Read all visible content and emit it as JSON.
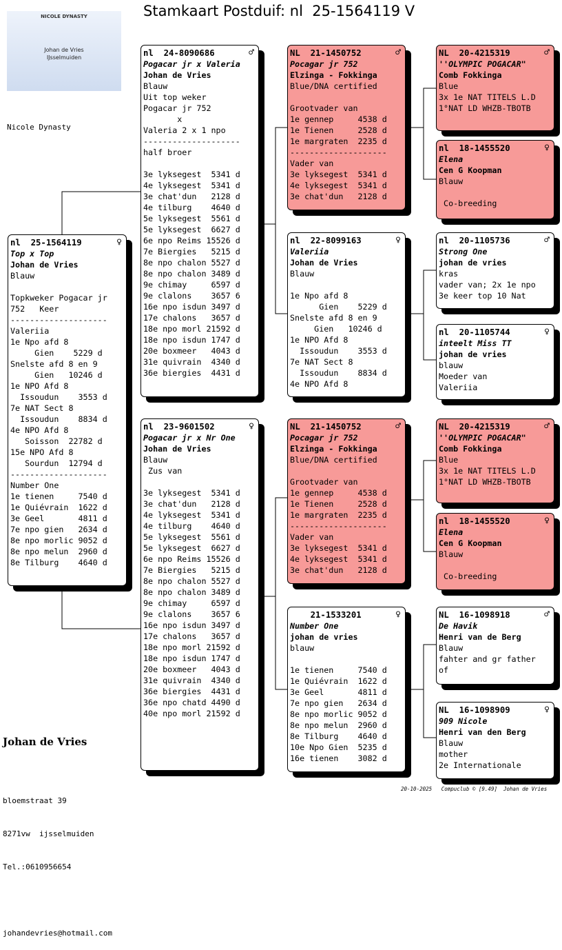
{
  "header": {
    "title": "Stamkaart Postduif: nl  25-1564119 V",
    "loft": "Nicole Dynasty",
    "logo": {
      "title": "NICOLE DYNASTY",
      "name": "Johan de Vries",
      "place": "IJsselmuiden"
    }
  },
  "owner": {
    "name": "Johan de Vries",
    "street": "bloemstraat 39",
    "city": "8271vw  ijsselmuiden",
    "phone": "Tel.:0610956654",
    "email": "johandevries@hotmail.com"
  },
  "footer": "20-10-2025   Compuclub © [9.49]  Johan de Vries",
  "cards": [
    {
      "ring": "nl  25-1564119",
      "sex": "♀",
      "name": "Top x Top",
      "owner": "Johan de Vries",
      "blocks": [
        [
          "Blauw"
        ],
        [
          "Topkweker Pogacar jr",
          "752   Keer",
          "--------------------",
          "Valeriia",
          "1e Npo afd 8",
          "     Gien    5229 d",
          "Snelste afd 8 en 9",
          "     Gien   10246 d",
          "1e NPO Afd 8",
          "  Issoudun    3553 d",
          "7e NAT Sect 8",
          "  Issoudun    8834 d",
          "4e NPO Afd 8",
          "   Soisson  22782 d",
          "15e NPO Afd 8",
          "   Sourdun  12794 d",
          "--------------------",
          "Number One",
          "1e tienen     7540 d",
          "1e Quiévrain  1622 d",
          "3e Geel       4811 d",
          "7e npo gien   2634 d",
          "8e npo morlic 9052 d",
          "8e npo melun  2960 d",
          "8e Tilburg    4640 d"
        ]
      ]
    },
    {
      "ring": "nl  24-8090686",
      "sex": "♂",
      "name": "Pogacar jr x Valeria",
      "owner": "Johan de Vries",
      "blocks": [
        [
          "Blauw",
          "Uit top weker",
          "Pogacar jr 752",
          "       x",
          "Valeria 2 x 1 npo",
          "--------------------",
          "half broer"
        ],
        [
          "3e lyksegest  5341 d",
          "4e lyksegest  5341 d",
          "3e chat'dun   2128 d",
          "4e tilburg    4640 d",
          "5e lyksegest  5561 d",
          "5e lyksegest  6627 d",
          "6e npo Reims 15526 d",
          "7e Biergies   5215 d",
          "8e npo chalon 5527 d",
          "8e npo chalon 3489 d",
          "9e chimay     6597 d",
          "9e clalons    3657 6",
          "16e npo isdun 3497 d",
          "17e chalons   3657 d",
          "18e npo morl 21592 d",
          "18e npo isdun 1747 d",
          "20e boxmeer   4043 d",
          "31e quivrain  4340 d",
          "36e biergies  4431 d"
        ]
      ]
    },
    {
      "ring": "nl  23-9601502",
      "sex": "♀",
      "name": "Pogacar jr x Nr One",
      "owner": "Johan de Vries",
      "blocks": [
        [
          "Blauw",
          " Zus van"
        ],
        [
          "3e lyksegest  5341 d",
          "3e chat'dun   2128 d",
          "4e lyksegest  5341 d",
          "4e tilburg    4640 d",
          "5e lyksegest  5561 d",
          "5e lyksegest  6627 d",
          "6e npo Reims 15526 d",
          "7e Biergies   5215 d",
          "8e npo chalon 5527 d",
          "8e npo chalon 3489 d",
          "9e chimay     6597 d",
          "9e clalons    3657 6",
          "16e npo isdun 3497 d",
          "17e chalons   3657 d",
          "18e npo morl 21592 d",
          "18e npo isdun 1747 d",
          "20e boxmeer   4043 d",
          "31e quivrain  4340 d",
          "36e biergies  4431 d",
          "36e npo chatd 4490 d",
          "40e npo morl 21592 d"
        ]
      ]
    },
    {
      "ring": "NL  21-1450752",
      "sex": "♂",
      "name": "Pocagar jr 752",
      "owner": "Elzinga - Fokkinga",
      "blocks": [
        [
          "Blue/DNA certified"
        ],
        [
          "Grootvader van",
          "1e gennep     4538 d",
          "1e Tienen     2528 d",
          "1e margraten  2235 d",
          "--------------------",
          "Vader van",
          "3e lyksegest  5341 d",
          "4e lyksegest  5341 d",
          "3e chat'dun   2128 d"
        ]
      ]
    },
    {
      "ring": "nl  22-8099163",
      "sex": "♀",
      "name": "Valeriia",
      "owner": "Johan de Vries",
      "blocks": [
        [
          "Blauw"
        ],
        [
          "1e Npo afd 8",
          "      Gien    5229 d",
          "Snelste afd 8 en 9",
          "     Gien   10246 d",
          "1e NPO Afd 8",
          "  Issoudun    3553 d",
          "7e NAT Sect 8",
          "  Issoudun    8834 d",
          "4e NPO Afd 8"
        ]
      ]
    },
    {
      "ring": "NL  21-1450752",
      "sex": "♂",
      "name": "Pocagar jr 752",
      "owner": "Elzinga - Fokkinga",
      "blocks": [
        [
          "Blue/DNA certified"
        ],
        [
          "Grootvader van",
          "1e gennep     4538 d",
          "1e Tienen     2528 d",
          "1e margraten  2235 d",
          "--------------------",
          "Vader van",
          "3e lyksegest  5341 d",
          "4e lyksegest  5341 d",
          "3e chat'dun   2128 d"
        ]
      ]
    },
    {
      "ring": "    21-1533201",
      "sex": "♀",
      "name": "Number One",
      "owner": "johan de vries",
      "blocks": [
        [
          "blauw"
        ],
        [
          "1e tienen     7540 d",
          "1e Quiévrain  1622 d",
          "3e Geel       4811 d",
          "7e npo gien   2634 d",
          "8e npo morlic 9052 d",
          "8e npo melun  2960 d",
          "8e Tilburg    4640 d",
          "10e Npo Gien  5235 d",
          "16e tienen    3082 d"
        ]
      ]
    },
    {
      "ring": "NL  20-4215319",
      "sex": "♂",
      "name": "''OLYMPIC POGACAR\"",
      "owner": "Comb Fokkinga",
      "blocks": [
        [
          "Blue",
          "3x 1e NAT TITELS L.D",
          "1°NAT LD WHZB-TBOTB"
        ]
      ]
    },
    {
      "ring": "nl  18-1455520",
      "sex": "♀",
      "name": "Elena",
      "owner": "Cen G Koopman",
      "blocks": [
        [
          "Blauw"
        ],
        [
          " Co-breeding"
        ]
      ]
    },
    {
      "ring": "nl  20-1105736",
      "sex": "♂",
      "name": "Strong One",
      "owner": "johan de vries",
      "blocks": [
        [
          "kras",
          "vader van; 2x 1e npo",
          "3e keer top 10 Nat"
        ]
      ]
    },
    {
      "ring": "nl  20-1105744",
      "sex": "♀",
      "name": "inteelt Miss TT",
      "owner": "johan de vries",
      "blocks": [
        [
          "blauw",
          "Moeder van",
          "Valeriia"
        ]
      ]
    },
    {
      "ring": "NL  20-4215319",
      "sex": "♂",
      "name": "''OLYMPIC POGACAR\"",
      "owner": "Comb Fokkinga",
      "blocks": [
        [
          "Blue",
          "3x 1e NAT TITELS L.D",
          "1°NAT LD WHZB-TBOTB"
        ]
      ]
    },
    {
      "ring": "nl  18-1455520",
      "sex": "♀",
      "name": "Elena",
      "owner": "Cen G Koopman",
      "blocks": [
        [
          "Blauw"
        ],
        [
          " Co-breeding"
        ]
      ]
    },
    {
      "ring": "NL  16-1098918",
      "sex": "♂",
      "name": "De Havik",
      "owner": "Henri van de Berg",
      "blocks": [
        [
          "Blauw",
          "fahter and gr father",
          "of"
        ]
      ]
    },
    {
      "ring": "NL  16-1098909",
      "sex": "♀",
      "name": "909 Nicole",
      "owner": "Henri van den Berg",
      "blocks": [
        [
          "Blauw",
          "mother",
          "2e Internationale"
        ]
      ]
    }
  ]
}
